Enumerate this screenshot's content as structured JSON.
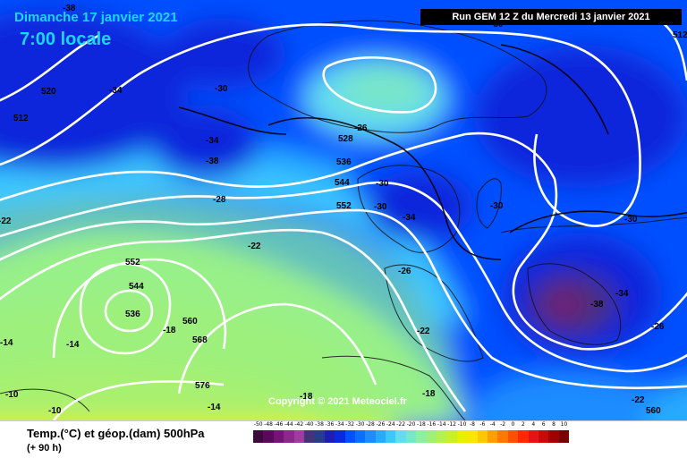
{
  "header": {
    "date": "Dimanche 17 janvier 2021",
    "time": "7:00 locale",
    "run": "Run GEM 12 Z du Mercredi 13 janvier 2021"
  },
  "copyright": "Copyright © 2021 Meteociel.fr",
  "footer": {
    "title": "Temp.(°C) et géop.(dam) 500hPa",
    "subtitle": "(+ 90 h)"
  },
  "scale": {
    "values": [
      "-50",
      "-48",
      "-46",
      "-44",
      "-42",
      "-40",
      "-38",
      "-36",
      "-34",
      "-32",
      "-30",
      "-28",
      "-26",
      "-24",
      "-22",
      "-20",
      "-18",
      "-16",
      "-14",
      "-12",
      "-10",
      "-8",
      "-6",
      "-4",
      "-2",
      "0",
      "2",
      "4",
      "6",
      "8",
      "10"
    ],
    "colors": [
      "#3c0a3c",
      "#5a0a5a",
      "#781478",
      "#8c288c",
      "#a03ca0",
      "#46327a",
      "#283c8c",
      "#1e1eb4",
      "#0a28dc",
      "#0050ff",
      "#0a6eff",
      "#1e8cff",
      "#28aaff",
      "#3cc8ff",
      "#64dcf0",
      "#78e6c8",
      "#8cf0a0",
      "#a0f078",
      "#b4f050",
      "#c8f028",
      "#e6f000",
      "#fae600",
      "#ffc800",
      "#ffa000",
      "#ff7800",
      "#ff5000",
      "#ff2800",
      "#e61414",
      "#c80a0a",
      "#a00000",
      "#780000"
    ]
  },
  "geopotential_labels": [
    "520",
    "512",
    "528",
    "536",
    "544",
    "552",
    "552",
    "544",
    "536",
    "560",
    "568",
    "576",
    "560",
    "512"
  ],
  "temperature_labels": [
    "-38",
    "-34",
    "-30",
    "-34",
    "-38",
    "-26",
    "-28",
    "-30",
    "-30",
    "-34",
    "-30",
    "-30",
    "-22",
    "-26",
    "-22",
    "-18",
    "-34",
    "-38",
    "-26",
    "-22",
    "-14",
    "-14",
    "-10",
    "-10",
    "-14",
    "-18",
    "-18",
    "-22",
    "-30"
  ],
  "map_colors": {
    "deep": "#0a28dc",
    "cold": "#0050ff",
    "mid": "#1e8cff",
    "cyan": "#3cc8ff",
    "aqua": "#64dcf0",
    "mint": "#78e6c8",
    "green": "#8cf0a0",
    "lime": "#b4f050",
    "yellow": "#e6f000",
    "purple": "#46327a"
  }
}
